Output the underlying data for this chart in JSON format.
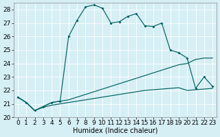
{
  "xlabel": "Humidex (Indice chaleur)",
  "xlim": [
    -0.5,
    23.5
  ],
  "ylim": [
    20,
    28.5
  ],
  "yticks": [
    20,
    21,
    22,
    23,
    24,
    25,
    26,
    27,
    28
  ],
  "xticks": [
    0,
    1,
    2,
    3,
    4,
    5,
    6,
    7,
    8,
    9,
    10,
    11,
    12,
    13,
    14,
    15,
    16,
    17,
    18,
    19,
    20,
    21,
    22,
    23
  ],
  "bg_color": "#d6eff5",
  "line_color": "#006060",
  "title_fontsize": 7,
  "axis_fontsize": 7,
  "tick_fontsize": 6.5,
  "main_x": [
    0,
    1,
    2,
    3,
    4,
    5,
    6,
    7,
    8,
    9,
    10,
    11,
    12,
    13,
    14,
    15,
    16,
    17,
    18,
    19,
    20,
    21,
    22,
    23
  ],
  "main_y": [
    21.5,
    21.1,
    20.5,
    20.8,
    21.1,
    21.2,
    26.0,
    27.2,
    28.2,
    28.35,
    28.1,
    27.0,
    27.1,
    27.5,
    27.7,
    26.8,
    26.75,
    27.0,
    25.0,
    24.8,
    24.4,
    22.15,
    23.0,
    22.3
  ],
  "line2_x": [
    0,
    1,
    2,
    3,
    4,
    5,
    6,
    7,
    8,
    9,
    10,
    11,
    12,
    13,
    14,
    15,
    16,
    17,
    18,
    19,
    20,
    21,
    22,
    23
  ],
  "line2_y": [
    21.5,
    21.1,
    20.5,
    20.8,
    21.1,
    21.2,
    21.3,
    21.5,
    21.7,
    21.9,
    22.1,
    22.3,
    22.5,
    22.7,
    22.9,
    23.1,
    23.3,
    23.5,
    23.7,
    23.9,
    24.0,
    24.3,
    24.4,
    24.4
  ],
  "line3_x": [
    0,
    1,
    2,
    3,
    4,
    5,
    6,
    7,
    8,
    9,
    10,
    11,
    12,
    13,
    14,
    15,
    16,
    17,
    18,
    19,
    20,
    21,
    22,
    23
  ],
  "line3_y": [
    21.5,
    21.1,
    20.5,
    20.75,
    20.9,
    21.0,
    21.1,
    21.2,
    21.3,
    21.4,
    21.5,
    21.6,
    21.7,
    21.8,
    21.9,
    22.0,
    22.05,
    22.1,
    22.15,
    22.2,
    22.0,
    22.05,
    22.1,
    22.15
  ]
}
